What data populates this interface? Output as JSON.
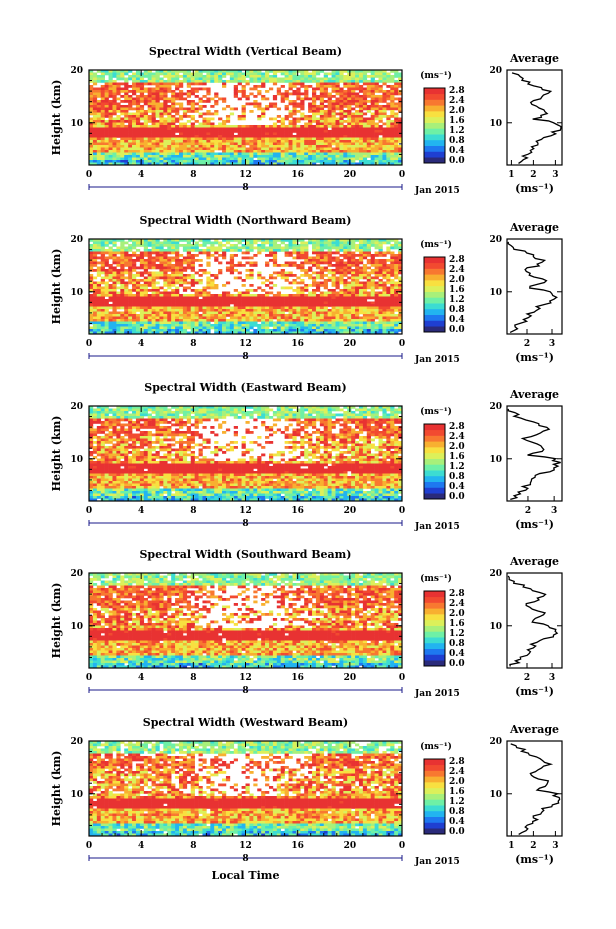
{
  "chart_data": [
    {
      "type": "heatmap",
      "title": "Spectral Width (Vertical Beam)",
      "ylabel": "Height (km)",
      "yticks": [
        "20",
        "10"
      ],
      "ylim": [
        2,
        20
      ],
      "xticks": [
        "0",
        "4",
        "8",
        "12",
        "16",
        "20",
        "0"
      ],
      "xlim": [
        0,
        24
      ],
      "date_index": "8",
      "date_label": "Jan 2015",
      "seed": 11,
      "band_upper_km": 12.5,
      "colorbar": {
        "unit": "(ms⁻¹)",
        "ticks": [
          "2.8",
          "2.4",
          "2.0",
          "1.6",
          "1.2",
          "0.8",
          "0.4",
          "0.0"
        ]
      },
      "average": {
        "title": "Average",
        "xlabel": "(ms⁻¹)",
        "xticks": [
          "1",
          "2",
          "3"
        ],
        "xlim": [
          0.8,
          3.3
        ],
        "yticks": [
          "20",
          "10"
        ]
      }
    },
    {
      "type": "heatmap",
      "title": "Spectral Width (Northward Beam)",
      "ylabel": "Height (km)",
      "yticks": [
        "20",
        "10"
      ],
      "ylim": [
        2,
        20
      ],
      "xticks": [
        "0",
        "4",
        "8",
        "12",
        "16",
        "20",
        "0"
      ],
      "xlim": [
        0,
        24
      ],
      "date_index": "8",
      "date_label": "Jan 2015",
      "seed": 23,
      "band_upper_km": 14,
      "colorbar": {
        "unit": "(ms⁻¹)",
        "ticks": [
          "2.8",
          "2.4",
          "2.0",
          "1.6",
          "1.2",
          "0.8",
          "0.4",
          "0.0"
        ]
      },
      "average": {
        "title": "Average",
        "xlabel": "(ms⁻¹)",
        "xticks": [
          "2",
          "3"
        ],
        "xlim": [
          1.2,
          3.4
        ],
        "yticks": [
          "20",
          "10"
        ]
      }
    },
    {
      "type": "heatmap",
      "title": "Spectral Width (Eastward Beam)",
      "ylabel": "Height (km)",
      "yticks": [
        "20",
        "10"
      ],
      "ylim": [
        2,
        20
      ],
      "xticks": [
        "0",
        "4",
        "8",
        "12",
        "16",
        "20",
        "0"
      ],
      "xlim": [
        0,
        24
      ],
      "date_index": "8",
      "date_label": "Jan 2015",
      "seed": 37,
      "band_upper_km": 14.5,
      "colorbar": {
        "unit": "(ms⁻¹)",
        "ticks": [
          "2.8",
          "2.4",
          "2.0",
          "1.6",
          "1.2",
          "0.8",
          "0.4",
          "0.0"
        ]
      },
      "average": {
        "title": "Average",
        "xlabel": "(ms⁻¹)",
        "xticks": [
          "2",
          "3"
        ],
        "xlim": [
          1.2,
          3.3
        ],
        "yticks": [
          "20",
          "10"
        ]
      }
    },
    {
      "type": "heatmap",
      "title": "Spectral Width (Southward Beam)",
      "ylabel": "Height (km)",
      "yticks": [
        "20",
        "10"
      ],
      "ylim": [
        2,
        20
      ],
      "xticks": [
        "0",
        "4",
        "8",
        "12",
        "16",
        "20",
        "0"
      ],
      "xlim": [
        0,
        24
      ],
      "date_index": "8",
      "date_label": "Jan 2015",
      "seed": 51,
      "band_upper_km": 14,
      "colorbar": {
        "unit": "(ms⁻¹)",
        "ticks": [
          "2.8",
          "2.4",
          "2.0",
          "1.6",
          "1.2",
          "0.8",
          "0.4",
          "0.0"
        ]
      },
      "average": {
        "title": "Average",
        "xlabel": "(ms⁻¹)",
        "xticks": [
          "2",
          "3"
        ],
        "xlim": [
          1.2,
          3.4
        ],
        "yticks": [
          "20",
          "10"
        ]
      }
    },
    {
      "type": "heatmap",
      "title": "Spectral Width (Westward Beam)",
      "ylabel": "Height (km)",
      "yticks": [
        "20",
        "10"
      ],
      "ylim": [
        2,
        20
      ],
      "xticks": [
        "0",
        "4",
        "8",
        "12",
        "16",
        "20",
        "0"
      ],
      "xlim": [
        0,
        24
      ],
      "date_index": "8",
      "date_label": "Jan 2015",
      "seed": 67,
      "band_upper_km": 15,
      "colorbar": {
        "unit": "(ms⁻¹)",
        "ticks": [
          "2.8",
          "2.4",
          "2.0",
          "1.6",
          "1.2",
          "0.8",
          "0.4",
          "0.0"
        ]
      },
      "average": {
        "title": "Average",
        "xlabel": "(ms⁻¹)",
        "xticks": [
          "1",
          "2",
          "3"
        ],
        "xlim": [
          0.8,
          3.3
        ],
        "yticks": [
          "20",
          "10"
        ]
      }
    }
  ],
  "xlabel_bottom": "Local Time",
  "colorscale": [
    "#2a2a7a",
    "#1f3fd1",
    "#1e78f0",
    "#22b4f0",
    "#3cdcd2",
    "#6ef0a6",
    "#a8f07a",
    "#dcf05a",
    "#f8e040",
    "#f8b030",
    "#f87830",
    "#f24a30",
    "#e83232"
  ]
}
